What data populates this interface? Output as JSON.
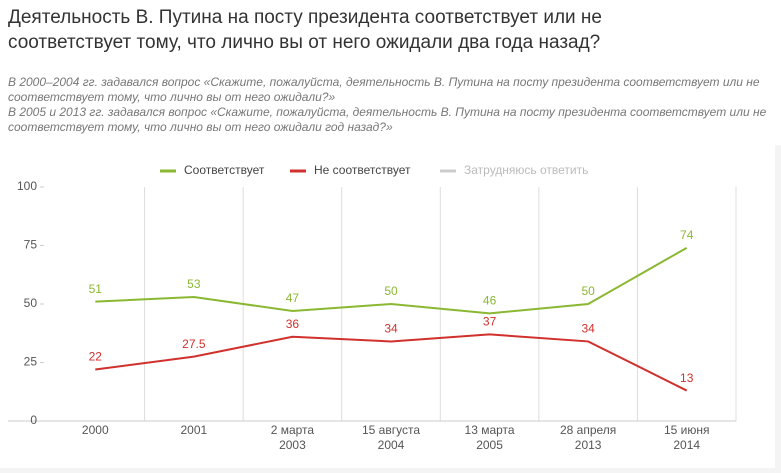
{
  "chart_data": {
    "type": "line",
    "title": "Деятельность В. Путина на посту президента соответствует или не соответствует тому, что лично вы от него ожидали два года назад?",
    "subtitle": [
      "В 2000–2004 гг. задавался вопрос «Скажите, пожалуйста, деятельность В. Путина на посту президента соответствует или не соответствует тому, что лично вы от него ожидали?»",
      "В 2005 и 2013 гг. задавался вопрос «Скажите, пожалуйста, деятельность В. Путина на посту президента соответствует или не соответствует тому, что лично вы от него ожидали год назад?»"
    ],
    "categories": [
      "2000",
      "2001",
      "2 марта\n2003",
      "15 августа\n2004",
      "13 марта\n2005",
      "28 апреля\n2013",
      "15 июня\n2014"
    ],
    "series": [
      {
        "name": "Соответствует",
        "color": "#8ab832",
        "values": [
          51,
          53,
          47,
          50,
          46,
          50,
          74
        ]
      },
      {
        "name": "Не соответствует",
        "color": "#d0312d",
        "values": [
          22,
          27.5,
          36,
          34,
          37,
          34,
          13
        ]
      },
      {
        "name": "Затрудняюсь ответить",
        "color": "#cccccc",
        "values": [
          null,
          null,
          null,
          null,
          null,
          null,
          null
        ]
      }
    ],
    "ylim": [
      0,
      100
    ],
    "yticks": [
      0,
      25,
      50,
      75,
      100
    ],
    "legend": "top"
  }
}
